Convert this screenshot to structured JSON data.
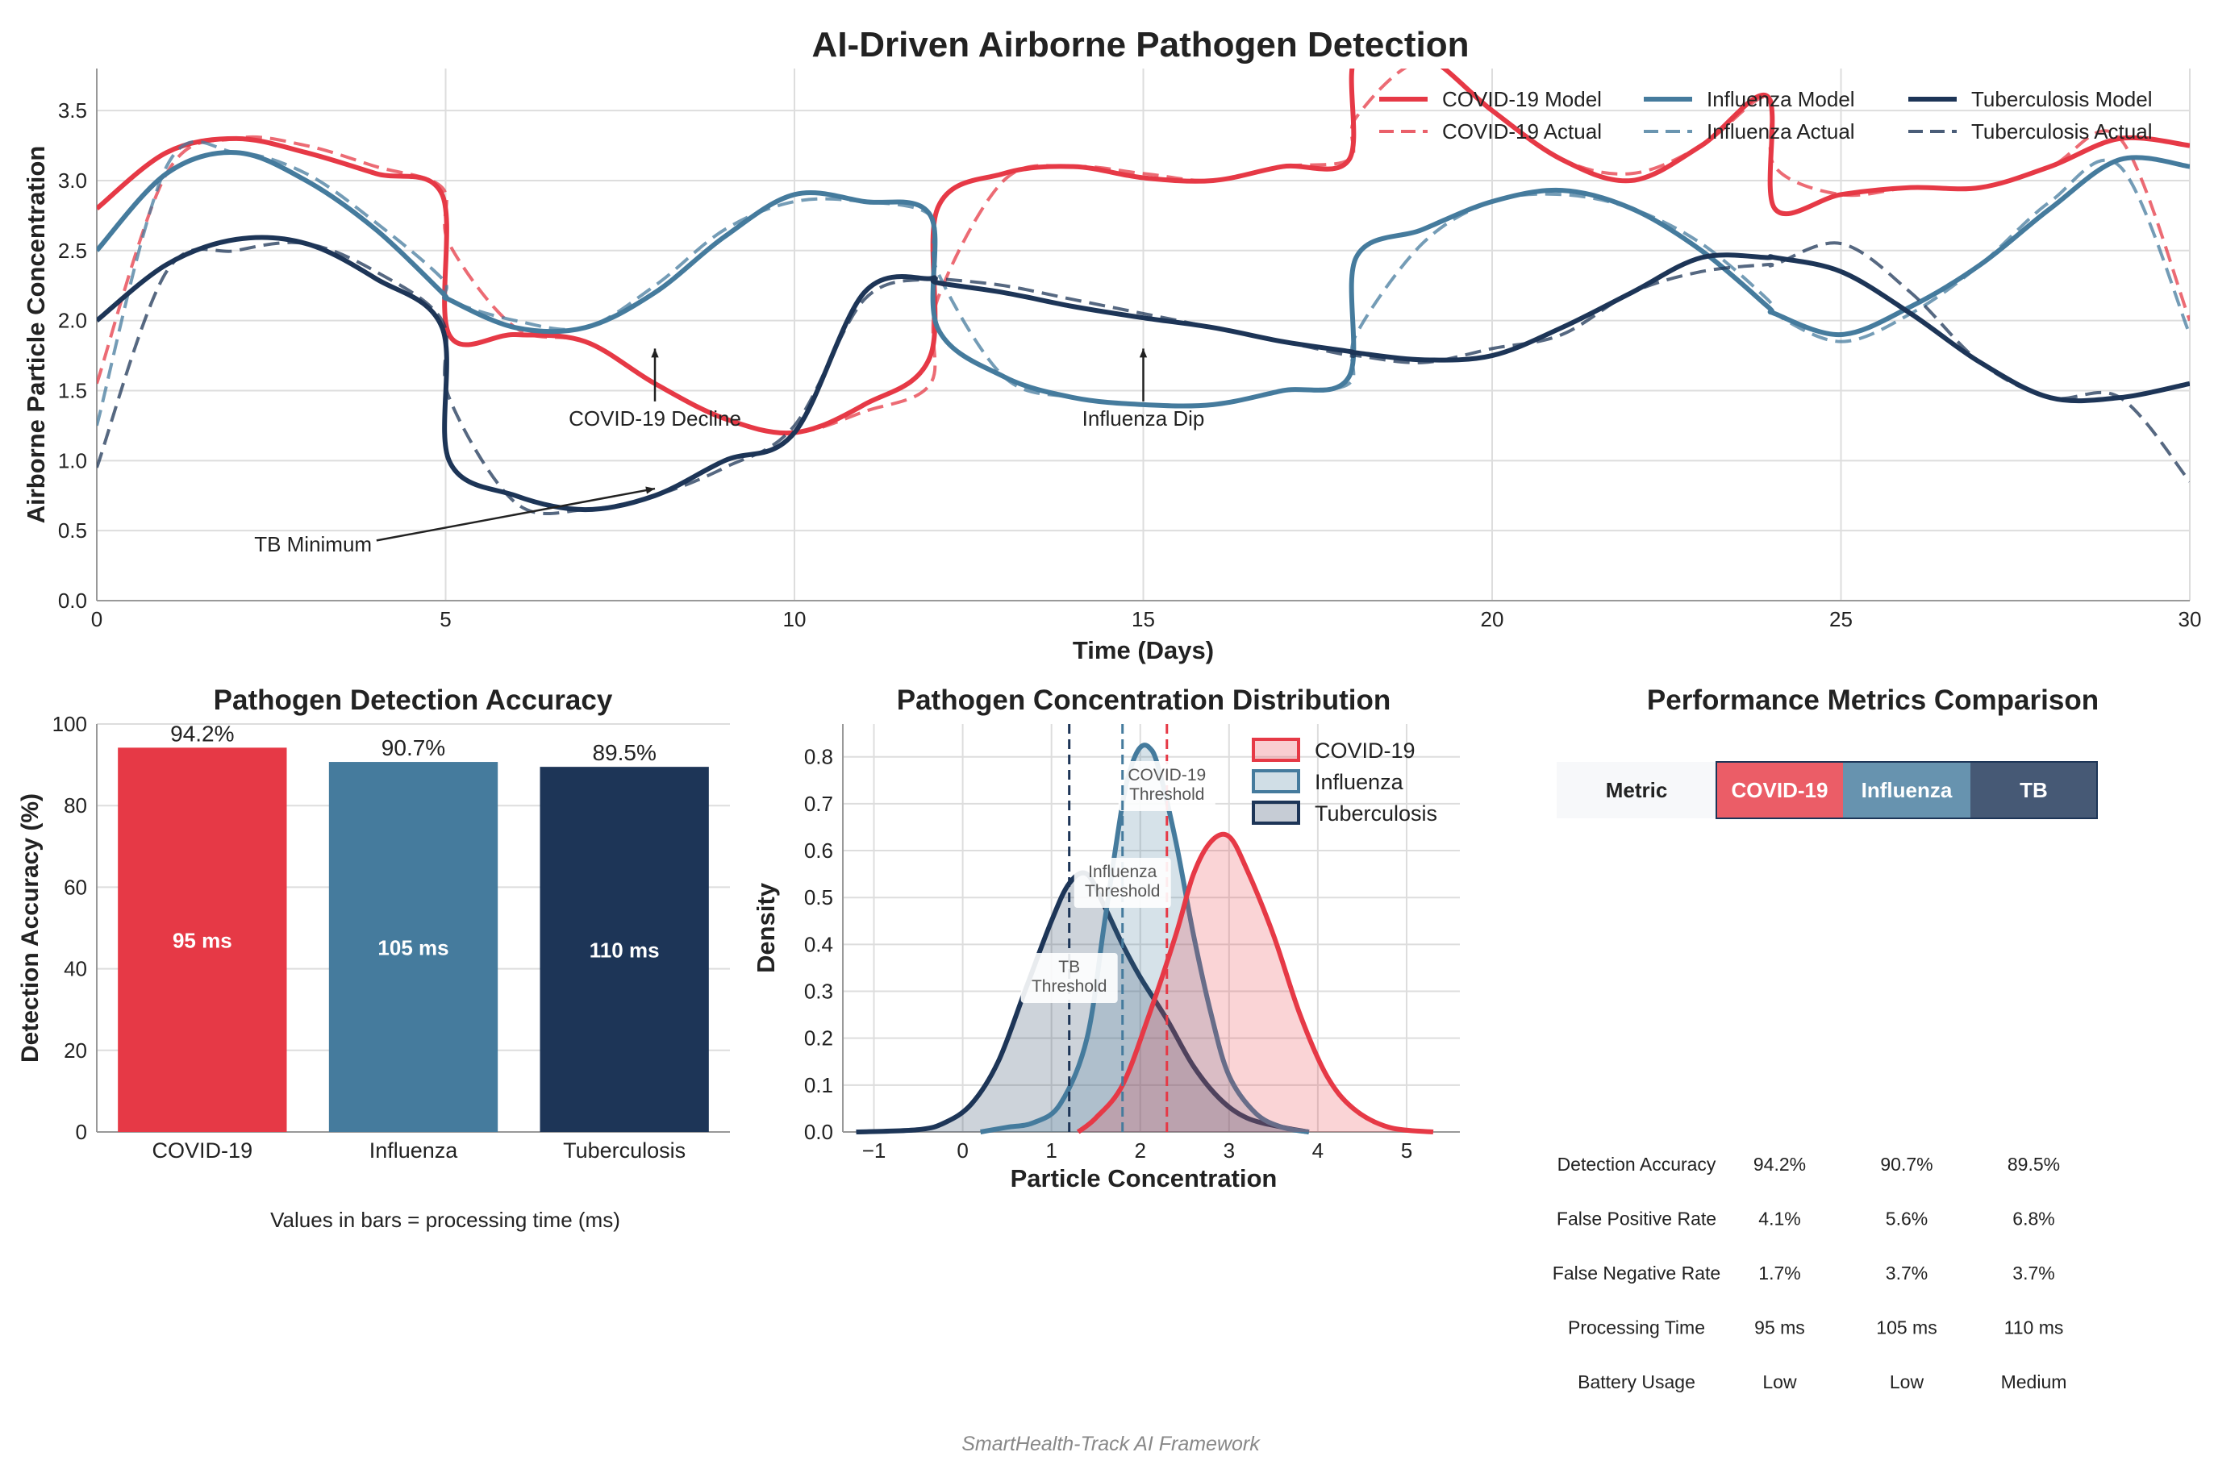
{
  "title": "AI-Driven Airborne Pathogen Detection",
  "footer": "SmartHealth-Track AI Framework",
  "colors": {
    "covid": "#e63946",
    "influenza": "#457b9d",
    "tb": "#1d3557",
    "grid": "#dddddd",
    "axis": "#444444"
  },
  "chart_data": [
    {
      "type": "line",
      "title": "",
      "xlabel": "Time (Days)",
      "ylabel": "Airborne Particle Concentration",
      "xlim": [
        0,
        30
      ],
      "ylim": [
        0,
        3.8
      ],
      "xticks": [
        0,
        5,
        10,
        15,
        20,
        25,
        30
      ],
      "yticks": [
        0.0,
        0.5,
        1.0,
        1.5,
        2.0,
        2.5,
        3.0,
        3.5
      ],
      "grid": true,
      "legend_position": "top-right",
      "x": [
        0,
        1,
        2,
        3,
        4,
        4.95,
        5.05,
        6,
        7,
        8,
        9,
        10,
        11,
        11.95,
        12.05,
        13,
        14,
        15,
        16,
        17,
        17.95,
        18.05,
        19,
        20,
        21,
        22,
        23,
        23.95,
        24.05,
        25,
        26,
        27,
        28,
        29,
        30
      ],
      "series": [
        {
          "name": "COVID-19 Model",
          "color_key": "covid",
          "style": "solid",
          "values": [
            2.8,
            3.2,
            3.3,
            3.2,
            3.05,
            2.9,
            1.9,
            1.9,
            1.85,
            1.55,
            1.3,
            1.2,
            1.4,
            1.75,
            2.8,
            3.05,
            3.1,
            3.02,
            3.0,
            3.1,
            3.15,
            3.9,
            3.9,
            3.5,
            3.15,
            3.0,
            3.25,
            3.6,
            2.8,
            2.9,
            2.95,
            2.95,
            3.1,
            3.3,
            3.25
          ]
        },
        {
          "name": "COVID-19 Actual",
          "color_key": "covid",
          "style": "dashed",
          "values": [
            1.55,
            3.05,
            3.3,
            3.25,
            3.1,
            2.95,
            2.55,
            1.95,
            1.85,
            1.55,
            1.3,
            1.2,
            1.35,
            1.55,
            2.15,
            3.0,
            3.1,
            3.05,
            3.0,
            3.1,
            3.15,
            3.45,
            3.85,
            3.5,
            3.15,
            3.05,
            3.25,
            3.6,
            3.1,
            2.9,
            2.95,
            2.95,
            3.1,
            3.3,
            2.0
          ]
        },
        {
          "name": "Influenza Model",
          "color_key": "influenza",
          "style": "solid",
          "values": [
            2.5,
            3.05,
            3.2,
            3.0,
            2.65,
            2.2,
            2.15,
            1.95,
            1.95,
            2.2,
            2.6,
            2.9,
            2.85,
            2.75,
            1.95,
            1.6,
            1.45,
            1.4,
            1.4,
            1.5,
            1.6,
            2.45,
            2.65,
            2.85,
            2.93,
            2.8,
            2.5,
            2.1,
            2.05,
            1.9,
            2.1,
            2.4,
            2.8,
            3.15,
            3.1
          ]
        },
        {
          "name": "Influenza Actual",
          "color_key": "influenza",
          "style": "dashed",
          "values": [
            1.25,
            3.1,
            3.2,
            3.05,
            2.7,
            2.3,
            2.15,
            2.0,
            1.95,
            2.25,
            2.65,
            2.85,
            2.85,
            2.75,
            2.35,
            1.6,
            1.45,
            1.4,
            1.4,
            1.5,
            1.55,
            1.9,
            2.55,
            2.85,
            2.9,
            2.8,
            2.55,
            2.15,
            2.05,
            1.85,
            2.05,
            2.4,
            2.85,
            3.1,
            1.9
          ]
        },
        {
          "name": "Tuberculosis Model",
          "color_key": "tb",
          "style": "solid",
          "values": [
            2.0,
            2.4,
            2.58,
            2.55,
            2.3,
            1.95,
            1.0,
            0.75,
            0.65,
            0.75,
            1.0,
            1.2,
            2.2,
            2.3,
            2.27,
            2.2,
            2.1,
            2.02,
            1.95,
            1.85,
            1.78,
            1.77,
            1.72,
            1.75,
            1.95,
            2.2,
            2.45,
            2.45,
            2.45,
            2.35,
            2.05,
            1.7,
            1.45,
            1.45,
            1.55
          ]
        },
        {
          "name": "Tuberculosis Actual",
          "color_key": "tb",
          "style": "dashed",
          "values": [
            0.95,
            2.35,
            2.5,
            2.55,
            2.35,
            2.0,
            1.45,
            0.7,
            0.65,
            0.75,
            0.95,
            1.25,
            2.15,
            2.3,
            2.3,
            2.25,
            2.15,
            2.05,
            1.95,
            1.85,
            1.75,
            1.75,
            1.7,
            1.8,
            1.9,
            2.2,
            2.35,
            2.4,
            2.4,
            2.55,
            2.2,
            1.7,
            1.45,
            1.45,
            0.85
          ]
        }
      ],
      "annotations": [
        {
          "text": "COVID-19 Decline",
          "target_x": 8,
          "target_y": 1.8,
          "text_x": 8,
          "text_y": 1.25
        },
        {
          "text": "Influenza Dip",
          "target_x": 15,
          "target_y": 1.8,
          "text_x": 15,
          "text_y": 1.25
        },
        {
          "text": "TB Minimum",
          "target_x": 8,
          "target_y": 0.8,
          "text_x": 3.1,
          "text_y": 0.35
        }
      ]
    },
    {
      "type": "bar",
      "title": "Pathogen Detection Accuracy",
      "xlabel": "",
      "ylabel": "Detection Accuracy (%)",
      "ylim": [
        0,
        100
      ],
      "yticks": [
        0,
        20,
        40,
        60,
        80,
        100
      ],
      "categories": [
        "COVID-19",
        "Influenza",
        "Tuberculosis"
      ],
      "values": [
        94.2,
        90.7,
        89.5
      ],
      "value_labels": [
        "94.2%",
        "90.7%",
        "89.5%"
      ],
      "inner_labels": [
        "95 ms",
        "105 ms",
        "110 ms"
      ],
      "color_keys": [
        "covid",
        "influenza",
        "tb"
      ],
      "note": "Values in bars = processing time (ms)"
    },
    {
      "type": "area",
      "title": "Pathogen Concentration Distribution",
      "xlabel": "Particle Concentration",
      "ylabel": "Density",
      "xlim": [
        -1.35,
        5.6
      ],
      "ylim": [
        0,
        0.87
      ],
      "xticks": [
        -1,
        0,
        1,
        2,
        3,
        4,
        5
      ],
      "yticks": [
        0.0,
        0.1,
        0.2,
        0.3,
        0.4,
        0.5,
        0.6,
        0.7,
        0.8
      ],
      "grid": true,
      "legend_position": "top-right",
      "series": [
        {
          "name": "COVID-19",
          "color_key": "covid",
          "x": [
            1.3,
            1.5,
            1.8,
            2.1,
            2.4,
            2.6,
            2.8,
            3.0,
            3.2,
            3.5,
            3.8,
            4.1,
            4.4,
            4.8,
            5.3
          ],
          "values": [
            0.0,
            0.03,
            0.1,
            0.25,
            0.42,
            0.55,
            0.62,
            0.63,
            0.56,
            0.42,
            0.25,
            0.12,
            0.05,
            0.01,
            0.0
          ]
        },
        {
          "name": "Influenza",
          "color_key": "influenza",
          "x": [
            0.2,
            0.5,
            0.8,
            1.1,
            1.4,
            1.6,
            1.8,
            1.9,
            2.0,
            2.1,
            2.2,
            2.4,
            2.6,
            2.8,
            3.0,
            3.3,
            3.6,
            3.9
          ],
          "values": [
            0.0,
            0.01,
            0.02,
            0.06,
            0.2,
            0.45,
            0.7,
            0.78,
            0.82,
            0.82,
            0.78,
            0.62,
            0.42,
            0.25,
            0.12,
            0.04,
            0.01,
            0.0
          ]
        },
        {
          "name": "Tuberculosis",
          "color_key": "tb",
          "x": [
            -1.2,
            -0.5,
            -0.2,
            0.1,
            0.4,
            0.7,
            1.0,
            1.2,
            1.4,
            1.6,
            1.8,
            2.0,
            2.3,
            2.6,
            2.9,
            3.2,
            3.6,
            3.9
          ],
          "values": [
            0.0,
            0.005,
            0.02,
            0.06,
            0.15,
            0.3,
            0.45,
            0.53,
            0.55,
            0.48,
            0.4,
            0.33,
            0.24,
            0.14,
            0.07,
            0.03,
            0.01,
            0.0
          ]
        }
      ],
      "thresholds": [
        {
          "label": "COVID-19 Threshold",
          "x": 2.3,
          "color_key": "covid"
        },
        {
          "label": "Influenza Threshold",
          "x": 1.8,
          "color_key": "influenza"
        },
        {
          "label": "TB Threshold",
          "x": 1.2,
          "color_key": "tb"
        }
      ]
    },
    {
      "type": "table",
      "title": "Performance Metrics Comparison",
      "columns": [
        "Metric",
        "COVID-19",
        "Influenza",
        "TB"
      ],
      "header_color_keys": [
        "",
        "covid",
        "influenza",
        "tb"
      ],
      "rows": [
        [
          "Detection Accuracy",
          "94.2%",
          "90.7%",
          "89.5%"
        ],
        [
          "False Positive Rate",
          "4.1%",
          "5.6%",
          "6.8%"
        ],
        [
          "False Negative Rate",
          "1.7%",
          "3.7%",
          "3.7%"
        ],
        [
          "Processing Time",
          "95 ms",
          "105 ms",
          "110 ms"
        ],
        [
          "Battery Usage",
          "Low",
          "Low",
          "Medium"
        ]
      ]
    }
  ]
}
